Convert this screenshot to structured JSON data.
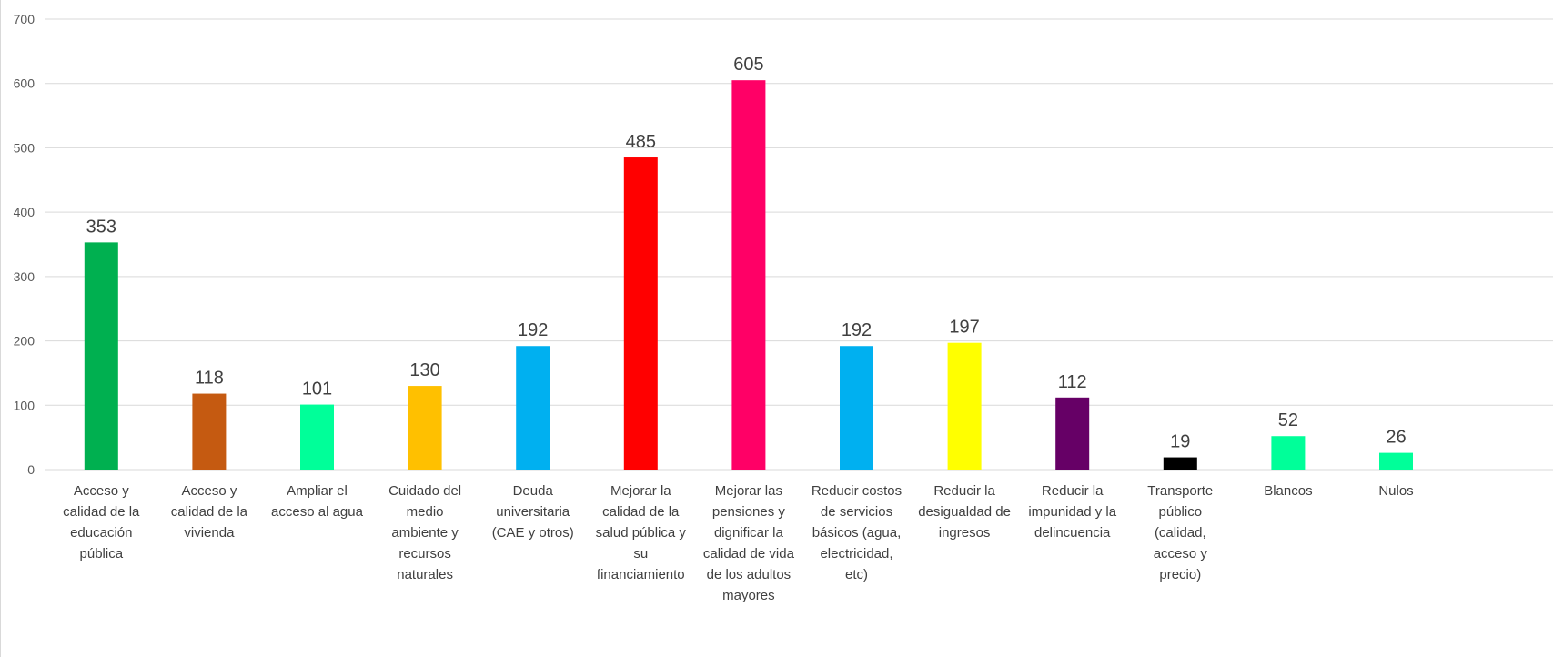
{
  "chart_data": {
    "type": "bar",
    "title": "",
    "xlabel": "",
    "ylabel": "",
    "ylim": [
      0,
      700
    ],
    "yticks": [
      0,
      100,
      200,
      300,
      400,
      500,
      600,
      700
    ],
    "grid": true,
    "legend": "none",
    "categories": [
      [
        "Acceso y",
        "calidad de la",
        "educación",
        "pública"
      ],
      [
        "Acceso y",
        "calidad de la",
        "vivienda"
      ],
      [
        "Ampliar el",
        "acceso al agua"
      ],
      [
        "Cuidado del",
        "medio",
        "ambiente y",
        "recursos",
        "naturales"
      ],
      [
        "Deuda",
        "universitaria",
        "(CAE y otros)"
      ],
      [
        "Mejorar la",
        "calidad de la",
        "salud pública y",
        "su",
        "financiamiento"
      ],
      [
        "Mejorar las",
        "pensiones y",
        "dignificar la",
        "calidad de vida",
        "de los adultos",
        "mayores"
      ],
      [
        "Reducir costos",
        "de servicios",
        "básicos (agua,",
        "electricidad,",
        "etc)"
      ],
      [
        "Reducir la",
        "desigualdad de",
        "ingresos"
      ],
      [
        "Reducir la",
        "impunidad y la",
        "delincuencia"
      ],
      [
        "Transporte",
        "público",
        "(calidad,",
        "acceso y",
        "precio)"
      ],
      [
        "Blancos"
      ],
      [
        "Nulos"
      ]
    ],
    "values": [
      353,
      118,
      101,
      130,
      192,
      485,
      605,
      192,
      197,
      112,
      19,
      52,
      26
    ],
    "colors": [
      "#00b050",
      "#c55a11",
      "#00ff99",
      "#ffc000",
      "#00b0f0",
      "#ff0000",
      "#ff0066",
      "#00b0f0",
      "#ffff00",
      "#660066",
      "#000000",
      "#00ff99",
      "#00ff99"
    ]
  }
}
